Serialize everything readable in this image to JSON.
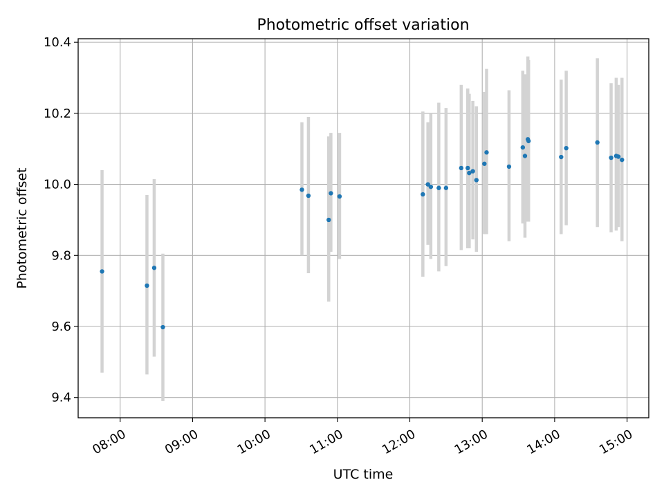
{
  "chart_data": {
    "type": "scatter",
    "title": "Photometric offset variation",
    "xlabel": "UTC time",
    "ylabel": "Photometric offset",
    "xlim": [
      7.42,
      15.3
    ],
    "ylim": [
      9.343,
      10.41
    ],
    "grid": true,
    "x_ticks": [
      {
        "value": 8,
        "label": "08:00"
      },
      {
        "value": 9,
        "label": "09:00"
      },
      {
        "value": 10,
        "label": "10:00"
      },
      {
        "value": 11,
        "label": "11:00"
      },
      {
        "value": 12,
        "label": "12:00"
      },
      {
        "value": 13,
        "label": "13:00"
      },
      {
        "value": 14,
        "label": "14:00"
      },
      {
        "value": 15,
        "label": "15:00"
      }
    ],
    "y_ticks": [
      {
        "value": 9.4,
        "label": "9.4"
      },
      {
        "value": 9.6,
        "label": "9.6"
      },
      {
        "value": 9.8,
        "label": "9.8"
      },
      {
        "value": 10.0,
        "label": "10.0"
      },
      {
        "value": 10.2,
        "label": "10.2"
      },
      {
        "value": 10.4,
        "label": "10.4"
      }
    ],
    "marker_color": "#1f77b4",
    "errorbar_color": "#d3d3d3",
    "series": [
      {
        "name": "offset",
        "points": [
          {
            "x": 7.75,
            "y": 9.755,
            "lo": 9.47,
            "hi": 10.04
          },
          {
            "x": 8.37,
            "y": 9.715,
            "lo": 9.465,
            "hi": 9.97
          },
          {
            "x": 8.47,
            "y": 9.765,
            "lo": 9.515,
            "hi": 10.015
          },
          {
            "x": 8.59,
            "y": 9.598,
            "lo": 9.39,
            "hi": 9.805
          },
          {
            "x": 10.51,
            "y": 9.985,
            "lo": 9.8,
            "hi": 10.175
          },
          {
            "x": 10.6,
            "y": 9.968,
            "lo": 9.75,
            "hi": 10.19
          },
          {
            "x": 10.88,
            "y": 9.9,
            "lo": 9.67,
            "hi": 10.135
          },
          {
            "x": 10.91,
            "y": 9.975,
            "lo": 9.81,
            "hi": 10.145
          },
          {
            "x": 11.03,
            "y": 9.966,
            "lo": 9.79,
            "hi": 10.145
          },
          {
            "x": 12.18,
            "y": 9.972,
            "lo": 9.74,
            "hi": 10.205
          },
          {
            "x": 12.25,
            "y": 10.0,
            "lo": 9.83,
            "hi": 10.175
          },
          {
            "x": 12.29,
            "y": 9.993,
            "lo": 9.79,
            "hi": 10.2
          },
          {
            "x": 12.4,
            "y": 9.99,
            "lo": 9.755,
            "hi": 10.23
          },
          {
            "x": 12.5,
            "y": 9.99,
            "lo": 9.77,
            "hi": 10.215
          },
          {
            "x": 12.71,
            "y": 10.046,
            "lo": 9.815,
            "hi": 10.28
          },
          {
            "x": 12.8,
            "y": 10.046,
            "lo": 9.82,
            "hi": 10.27
          },
          {
            "x": 12.82,
            "y": 10.032,
            "lo": 9.82,
            "hi": 10.255
          },
          {
            "x": 12.87,
            "y": 10.037,
            "lo": 9.845,
            "hi": 10.235
          },
          {
            "x": 12.92,
            "y": 10.012,
            "lo": 9.81,
            "hi": 10.22
          },
          {
            "x": 13.03,
            "y": 10.058,
            "lo": 9.86,
            "hi": 10.26
          },
          {
            "x": 13.06,
            "y": 10.09,
            "lo": 9.86,
            "hi": 10.325
          },
          {
            "x": 13.37,
            "y": 10.05,
            "lo": 9.84,
            "hi": 10.265
          },
          {
            "x": 13.56,
            "y": 10.104,
            "lo": 9.89,
            "hi": 10.32
          },
          {
            "x": 13.59,
            "y": 10.08,
            "lo": 9.85,
            "hi": 10.31
          },
          {
            "x": 13.63,
            "y": 10.127,
            "lo": 9.895,
            "hi": 10.36
          },
          {
            "x": 13.64,
            "y": 10.122,
            "lo": 9.895,
            "hi": 10.35
          },
          {
            "x": 14.09,
            "y": 10.077,
            "lo": 9.86,
            "hi": 10.295
          },
          {
            "x": 14.16,
            "y": 10.102,
            "lo": 9.885,
            "hi": 10.32
          },
          {
            "x": 14.59,
            "y": 10.118,
            "lo": 9.88,
            "hi": 10.355
          },
          {
            "x": 14.78,
            "y": 10.075,
            "lo": 9.865,
            "hi": 10.285
          },
          {
            "x": 14.85,
            "y": 10.08,
            "lo": 9.87,
            "hi": 10.3
          },
          {
            "x": 14.88,
            "y": 10.078,
            "lo": 9.88,
            "hi": 10.28
          },
          {
            "x": 14.93,
            "y": 10.069,
            "lo": 9.84,
            "hi": 10.3
          }
        ]
      }
    ]
  }
}
